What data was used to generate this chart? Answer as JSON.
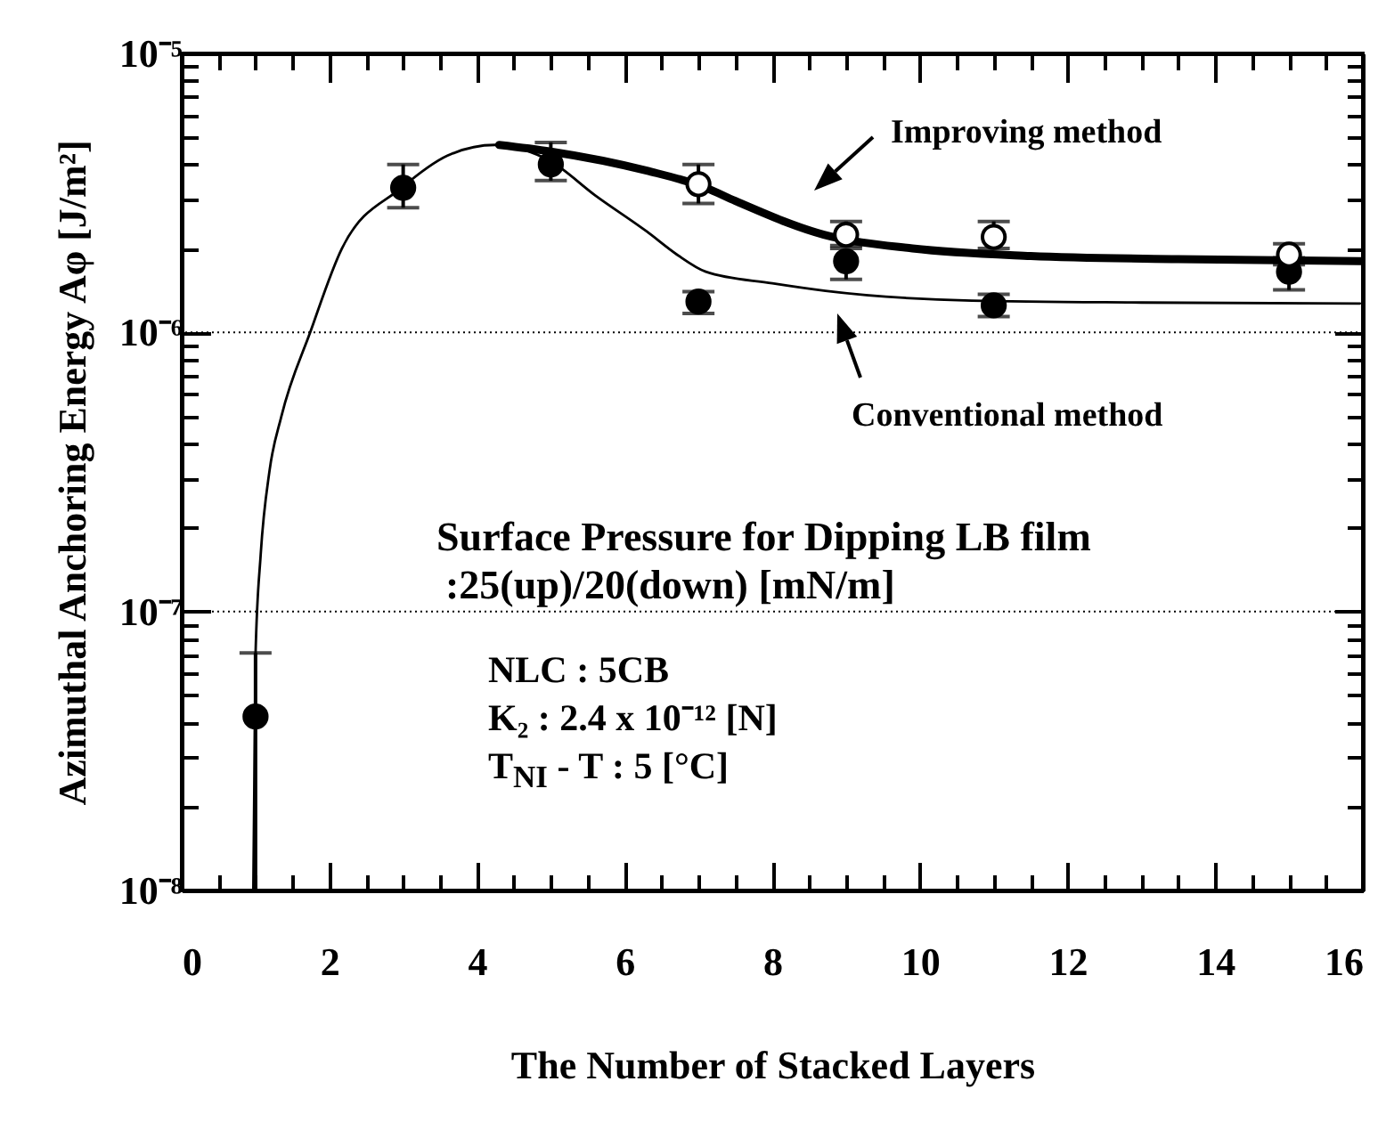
{
  "chart_data": {
    "type": "scatter",
    "xlabel": "The Number of Stacked Layers",
    "ylabel": "Azimuthal Anchoring Energy  Aφ [J/m²]",
    "log": "y",
    "xlim": [
      0,
      16
    ],
    "ylim": [
      1e-08,
      1e-05
    ],
    "xticks": [
      0,
      {
        "value": 0.5,
        "label": null
      },
      {
        "value": 1,
        "label": null
      },
      {
        "value": 1.5,
        "label": null
      },
      2,
      {
        "value": 2.5,
        "label": null
      },
      {
        "value": 3,
        "label": null
      },
      {
        "value": 3.5,
        "label": null
      },
      4,
      {
        "value": 4.5,
        "label": null
      },
      {
        "value": 5,
        "label": null
      },
      {
        "value": 5.5,
        "label": null
      },
      6,
      {
        "value": 6.5,
        "label": null
      },
      {
        "value": 7,
        "label": null
      },
      {
        "value": 7.5,
        "label": null
      },
      8,
      {
        "value": 8.5,
        "label": null
      },
      {
        "value": 9,
        "label": null
      },
      {
        "value": 9.5,
        "label": null
      },
      10,
      {
        "value": 10.5,
        "label": null
      },
      {
        "value": 11,
        "label": null
      },
      {
        "value": 11.5,
        "label": null
      },
      12,
      {
        "value": 12.5,
        "label": null
      },
      {
        "value": 13,
        "label": null
      },
      {
        "value": 13.5,
        "label": null
      },
      14,
      {
        "value": 14.5,
        "label": null
      },
      {
        "value": 15,
        "label": null
      },
      {
        "value": 15.5,
        "label": null
      },
      16
    ],
    "yticks": [
      {
        "value": 1e-08,
        "label": "10⁻⁸"
      },
      {
        "value": 2e-08,
        "label": null
      },
      {
        "value": 3e-08,
        "label": null
      },
      {
        "value": 4e-08,
        "label": null
      },
      {
        "value": 5e-08,
        "label": null
      },
      {
        "value": 6e-08,
        "label": null
      },
      {
        "value": 7e-08,
        "label": null
      },
      {
        "value": 8e-08,
        "label": null
      },
      {
        "value": 9e-08,
        "label": null
      },
      {
        "value": 1e-07,
        "label": "10⁻⁷"
      },
      {
        "value": 2e-07,
        "label": null
      },
      {
        "value": 3e-07,
        "label": null
      },
      {
        "value": 4e-07,
        "label": null
      },
      {
        "value": 5e-07,
        "label": null
      },
      {
        "value": 6e-07,
        "label": null
      },
      {
        "value": 7e-07,
        "label": null
      },
      {
        "value": 8e-07,
        "label": null
      },
      {
        "value": 9e-07,
        "label": null
      },
      {
        "value": 1e-06,
        "label": "10⁻⁶"
      },
      {
        "value": 2e-06,
        "label": null
      },
      {
        "value": 3e-06,
        "label": null
      },
      {
        "value": 4e-06,
        "label": null
      },
      {
        "value": 5e-06,
        "label": null
      },
      {
        "value": 6e-06,
        "label": null
      },
      {
        "value": 7e-06,
        "label": null
      },
      {
        "value": 8e-06,
        "label": null
      },
      {
        "value": 9e-06,
        "label": null
      },
      {
        "value": 1e-05,
        "label": "10⁻⁵"
      }
    ],
    "grid": "y",
    "marker": "circle",
    "annotations": [
      "Improving method",
      "Conventional method",
      "Surface Pressure for Dipping LB film",
      ":25(up)/20(down) [mN/m]",
      "NLC : 5CB",
      "K₂ : 2.4 x 10⁻¹²   [N]",
      "T$_{NI}$ - T : 5 [°C]"
    ],
    "series": [
      {
        "type": "line",
        "marker": "none",
        "color": "#000000",
        "x": [
          0.97,
          1.0,
          1.07,
          1.19,
          1.35,
          1.74,
          2.17,
          2.98,
          3.6,
          4.24,
          5.0,
          5.6,
          6.3,
          6.71,
          7.1,
          8.0,
          8.72,
          10.7,
          13,
          15.96
        ],
        "values": [
          1e-08,
          7e-08,
          1.6e-07,
          3.2e-07,
          5e-07,
          1e-06,
          2e-06,
          3.3e-06,
          4.3e-06,
          4.7e-06,
          4.1e-06,
          3.1e-06,
          2.3e-06,
          1.9e-06,
          1.65e-06,
          1.5e-06,
          1.41e-06,
          1.3e-06,
          1.28e-06,
          1.27e-06
        ]
      },
      {
        "type": "line",
        "marker": "none",
        "color": "#000000",
        "x": [
          4.3,
          5.0,
          6.3,
          7.1,
          7.5,
          8.7,
          9.9,
          11.5,
          13.5,
          16
        ],
        "values": [
          4.7e-06,
          4.45e-06,
          3.8e-06,
          3.3e-06,
          2.96e-06,
          2.24e-06,
          2e-06,
          1.88e-06,
          1.83e-06,
          1.8e-06
        ]
      },
      {
        "color": "#000000",
        "x": [
          1,
          3,
          5,
          7,
          9,
          11,
          15
        ],
        "values": [
          4.2e-08,
          3.3e-06,
          4e-06,
          1.29e-06,
          1.8e-06,
          1.25e-06,
          1.65e-06
        ],
        "errors": [
          [
            1e-08,
            7.1e-08
          ],
          [
            2.8e-06,
            4e-06
          ],
          [
            3.5e-06,
            4.8e-06
          ],
          [
            1.17e-06,
            1.4e-06
          ],
          [
            1.55e-06,
            2e-06
          ],
          [
            1.14e-06,
            1.37e-06
          ],
          [
            1.42e-06,
            1.85e-06
          ]
        ]
      },
      {
        "color": "#ffffff",
        "x": [
          7,
          9,
          11,
          15
        ],
        "values": [
          3.4e-06,
          2.24e-06,
          2.2e-06,
          1.9e-06
        ],
        "errors": [
          [
            2.9e-06,
            4e-06
          ],
          [
            2.05e-06,
            2.5e-06
          ],
          [
            2e-06,
            2.5e-06
          ],
          [
            1.75e-06,
            2.08e-06
          ]
        ]
      }
    ]
  }
}
